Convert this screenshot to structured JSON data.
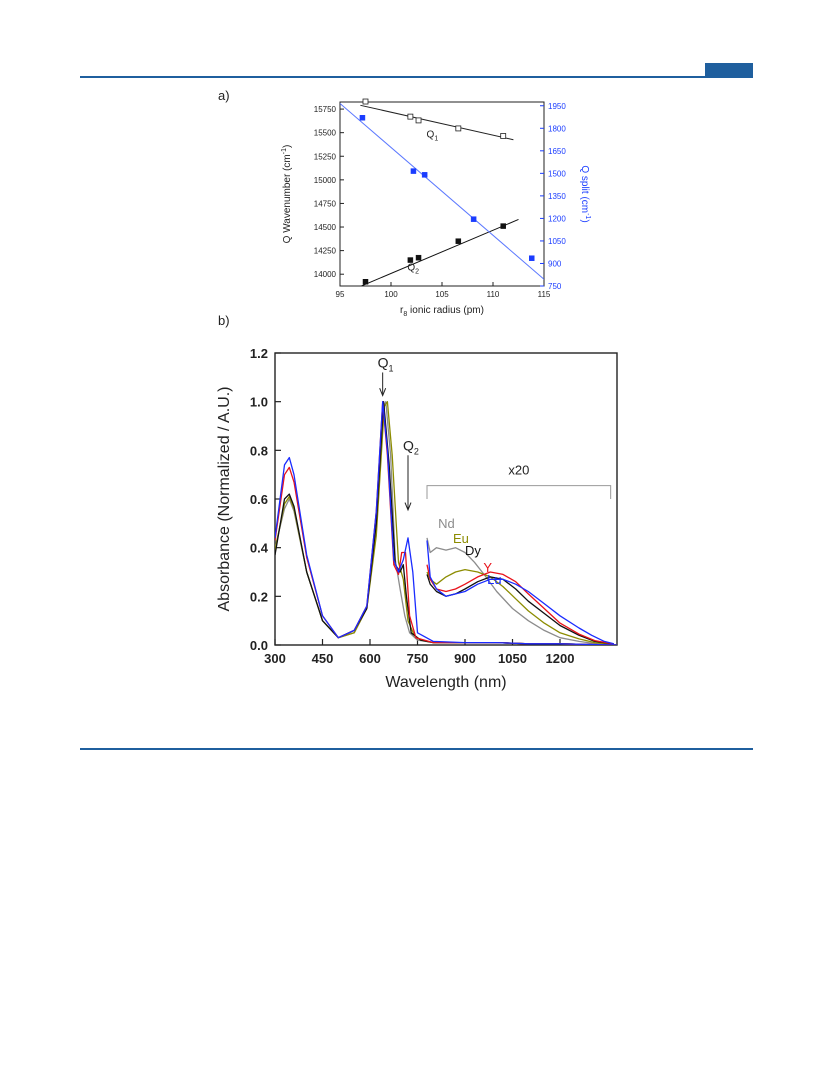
{
  "page": {
    "accent_color": "#1f5f9e",
    "rule_color": "#1f5f9e"
  },
  "panel_a_label": "a)",
  "panel_b_label": "b)",
  "chart_data": [
    {
      "type": "scatter",
      "panel": "a)",
      "xlabel": "r8 ionic radius (pm)",
      "xlabel_main": "r",
      "xlabel_sub": "8",
      "xlabel_rest": " ionic radius (pm)",
      "ylabel_left": "Q Wavenumber (cm-1)",
      "ylabel_left_main": "Q Wavenumber (cm",
      "ylabel_left_sup": "-1",
      "ylabel_left_close": ")",
      "ylabel_right": "Q split (cm-1)",
      "ylabel_right_main": "Q split (cm",
      "ylabel_right_sup": "-1",
      "ylabel_right_close": ")",
      "xlim": [
        95,
        115
      ],
      "ylim_left": [
        13875,
        15825
      ],
      "ylim_right": [
        750,
        1975
      ],
      "xticks": [
        95,
        100,
        105,
        110,
        115
      ],
      "yticks_left": [
        14000,
        14250,
        14500,
        14750,
        15000,
        15250,
        15500,
        15750
      ],
      "yticks_right": [
        750,
        900,
        1050,
        1200,
        1350,
        1500,
        1650,
        1800,
        1950
      ],
      "grid": false,
      "series": [
        {
          "name": "Q1",
          "label_main": "Q",
          "label_sub": "1",
          "axis": "left",
          "marker": "open-square",
          "color": "#222222",
          "x": [
            97.5,
            101.9,
            102.7,
            106.6,
            111.0
          ],
          "y": [
            15830,
            15670,
            15630,
            15545,
            15465
          ],
          "fit": {
            "x": [
              97.0,
              112.0
            ],
            "y": [
              15790,
              15425
            ]
          }
        },
        {
          "name": "Q2",
          "label_main": "Q",
          "label_sub": "2",
          "axis": "left",
          "marker": "filled-square",
          "color": "#111111",
          "x": [
            97.5,
            101.9,
            102.7,
            106.6,
            111.0
          ],
          "y": [
            13920,
            14150,
            14175,
            14350,
            14510
          ],
          "fit": {
            "x": [
              96.0,
              112.5
            ],
            "y": [
              13825,
              14580
            ]
          }
        },
        {
          "name": "Q split",
          "axis": "right",
          "marker": "filled-square",
          "color": "#1a3cff",
          "x": [
            97.2,
            102.2,
            103.3,
            108.1,
            113.8
          ],
          "y": [
            1870,
            1515,
            1490,
            1195,
            935
          ],
          "fit": {
            "x": [
              95.0,
              115.0
            ],
            "y": [
              1965,
              795
            ]
          }
        }
      ]
    },
    {
      "type": "line",
      "panel": "b)",
      "xlabel": "Wavelength (nm)",
      "ylabel": "Absorbance (Normalized / A.U.)",
      "xlim": [
        300,
        1380
      ],
      "ylim": [
        0.0,
        1.2
      ],
      "xticks": [
        300,
        450,
        600,
        750,
        900,
        1050,
        1200
      ],
      "yticks": [
        "0.0",
        "0.2",
        "0.4",
        "0.6",
        "0.8",
        "1.0",
        "1.2"
      ],
      "grid": false,
      "annotations": [
        {
          "text_main": "Q",
          "text_sub": "1",
          "x": 640,
          "y": 1.0
        },
        {
          "text_main": "Q",
          "text_sub": "2",
          "x": 720,
          "y": 0.8
        },
        {
          "text": "x20",
          "x_range": [
            780,
            1360
          ]
        }
      ],
      "series": [
        {
          "name": "Nd",
          "color": "#8c8c8c",
          "main": {
            "x": [
              300,
              330,
              345,
              360,
              400,
              450,
              500,
              550,
              590,
              620,
              640,
              650,
              665,
              680,
              695,
              710,
              725,
              750,
              800,
              900,
              1000,
              1100,
              1200,
              1300,
              1380
            ],
            "y": [
              0.4,
              0.56,
              0.6,
              0.55,
              0.3,
              0.1,
              0.03,
              0.05,
              0.15,
              0.5,
              0.97,
              1.0,
              0.78,
              0.35,
              0.23,
              0.12,
              0.05,
              0.02,
              0.01,
              0.01,
              0.01,
              0.005,
              0.005,
              0.002,
              0.0
            ]
          },
          "x20": {
            "x": [
              780,
              790,
              810,
              840,
              870,
              900,
              930,
              960,
              1000,
              1050,
              1100,
              1150,
              1200,
              1260,
              1300,
              1370
            ],
            "y": [
              0.44,
              0.38,
              0.4,
              0.39,
              0.4,
              0.38,
              0.34,
              0.29,
              0.22,
              0.15,
              0.1,
              0.06,
              0.03,
              0.015,
              0.008,
              0.003
            ]
          }
        },
        {
          "name": "Eu",
          "color": "#8c8c00",
          "main": {
            "x": [
              300,
              330,
              345,
              360,
              400,
              450,
              500,
              550,
              590,
              620,
              645,
              655,
              670,
              690,
              705,
              720,
              740,
              760,
              800,
              900,
              1000,
              1100,
              1200,
              1300,
              1380
            ],
            "y": [
              0.39,
              0.58,
              0.61,
              0.56,
              0.3,
              0.1,
              0.03,
              0.05,
              0.15,
              0.45,
              0.98,
              1.0,
              0.78,
              0.34,
              0.27,
              0.1,
              0.04,
              0.02,
              0.01,
              0.01,
              0.01,
              0.005,
              0.005,
              0.002,
              0.0
            ]
          },
          "x20": {
            "x": [
              780,
              790,
              810,
              840,
              870,
              900,
              940,
              980,
              1020,
              1060,
              1100,
              1150,
              1200,
              1260,
              1310,
              1370
            ],
            "y": [
              0.3,
              0.27,
              0.25,
              0.28,
              0.3,
              0.31,
              0.3,
              0.28,
              0.24,
              0.19,
              0.14,
              0.09,
              0.05,
              0.025,
              0.01,
              0.003
            ]
          }
        },
        {
          "name": "Dy",
          "color": "#111111",
          "main": {
            "x": [
              300,
              330,
              345,
              360,
              400,
              450,
              500,
              550,
              590,
              620,
              643,
              660,
              680,
              695,
              705,
              715,
              730,
              760,
              800,
              900,
              1000,
              1100,
              1200,
              1300,
              1380
            ],
            "y": [
              0.37,
              0.6,
              0.62,
              0.57,
              0.3,
              0.1,
              0.03,
              0.06,
              0.15,
              0.5,
              1.0,
              0.75,
              0.33,
              0.3,
              0.33,
              0.2,
              0.05,
              0.02,
              0.01,
              0.01,
              0.01,
              0.005,
              0.005,
              0.002,
              0.0
            ]
          },
          "x20": {
            "x": [
              780,
              790,
              810,
              840,
              870,
              900,
              940,
              980,
              1020,
              1060,
              1100,
              1150,
              1200,
              1260,
              1310,
              1370
            ],
            "y": [
              0.29,
              0.25,
              0.22,
              0.2,
              0.21,
              0.23,
              0.26,
              0.28,
              0.27,
              0.23,
              0.18,
              0.13,
              0.08,
              0.04,
              0.015,
              0.004
            ]
          }
        },
        {
          "name": "Y",
          "color": "#e8121b",
          "main": {
            "x": [
              300,
              330,
              345,
              360,
              400,
              450,
              500,
              550,
              590,
              620,
              640,
              655,
              675,
              690,
              700,
              712,
              725,
              745,
              800,
              900,
              1000,
              1100,
              1200,
              1300,
              1380
            ],
            "y": [
              0.43,
              0.7,
              0.73,
              0.67,
              0.36,
              0.12,
              0.03,
              0.06,
              0.16,
              0.55,
              1.0,
              0.78,
              0.33,
              0.29,
              0.38,
              0.38,
              0.12,
              0.03,
              0.01,
              0.01,
              0.01,
              0.005,
              0.005,
              0.002,
              0.0
            ]
          },
          "x20": {
            "x": [
              780,
              790,
              810,
              840,
              870,
              900,
              940,
              980,
              1020,
              1060,
              1100,
              1150,
              1200,
              1260,
              1310,
              1370
            ],
            "y": [
              0.33,
              0.27,
              0.23,
              0.22,
              0.23,
              0.25,
              0.28,
              0.3,
              0.29,
              0.26,
              0.21,
              0.15,
              0.09,
              0.045,
              0.018,
              0.004
            ]
          }
        },
        {
          "name": "Lu",
          "color": "#1a2cff",
          "main": {
            "x": [
              300,
              330,
              345,
              360,
              400,
              450,
              500,
              550,
              590,
              620,
              640,
              655,
              675,
              690,
              705,
              720,
              735,
              750,
              800,
              900,
              1000,
              1100,
              1200,
              1300,
              1380
            ],
            "y": [
              0.44,
              0.74,
              0.77,
              0.7,
              0.37,
              0.12,
              0.03,
              0.06,
              0.16,
              0.55,
              1.0,
              0.8,
              0.35,
              0.3,
              0.35,
              0.44,
              0.3,
              0.05,
              0.015,
              0.01,
              0.01,
              0.005,
              0.005,
              0.002,
              0.0
            ]
          },
          "x20": {
            "x": [
              780,
              790,
              810,
              840,
              870,
              900,
              940,
              980,
              1020,
              1060,
              1100,
              1150,
              1200,
              1260,
              1300,
              1340,
              1370
            ],
            "y": [
              0.43,
              0.28,
              0.23,
              0.2,
              0.21,
              0.22,
              0.25,
              0.27,
              0.27,
              0.25,
              0.22,
              0.17,
              0.12,
              0.07,
              0.04,
              0.015,
              0.005
            ]
          }
        }
      ]
    }
  ]
}
